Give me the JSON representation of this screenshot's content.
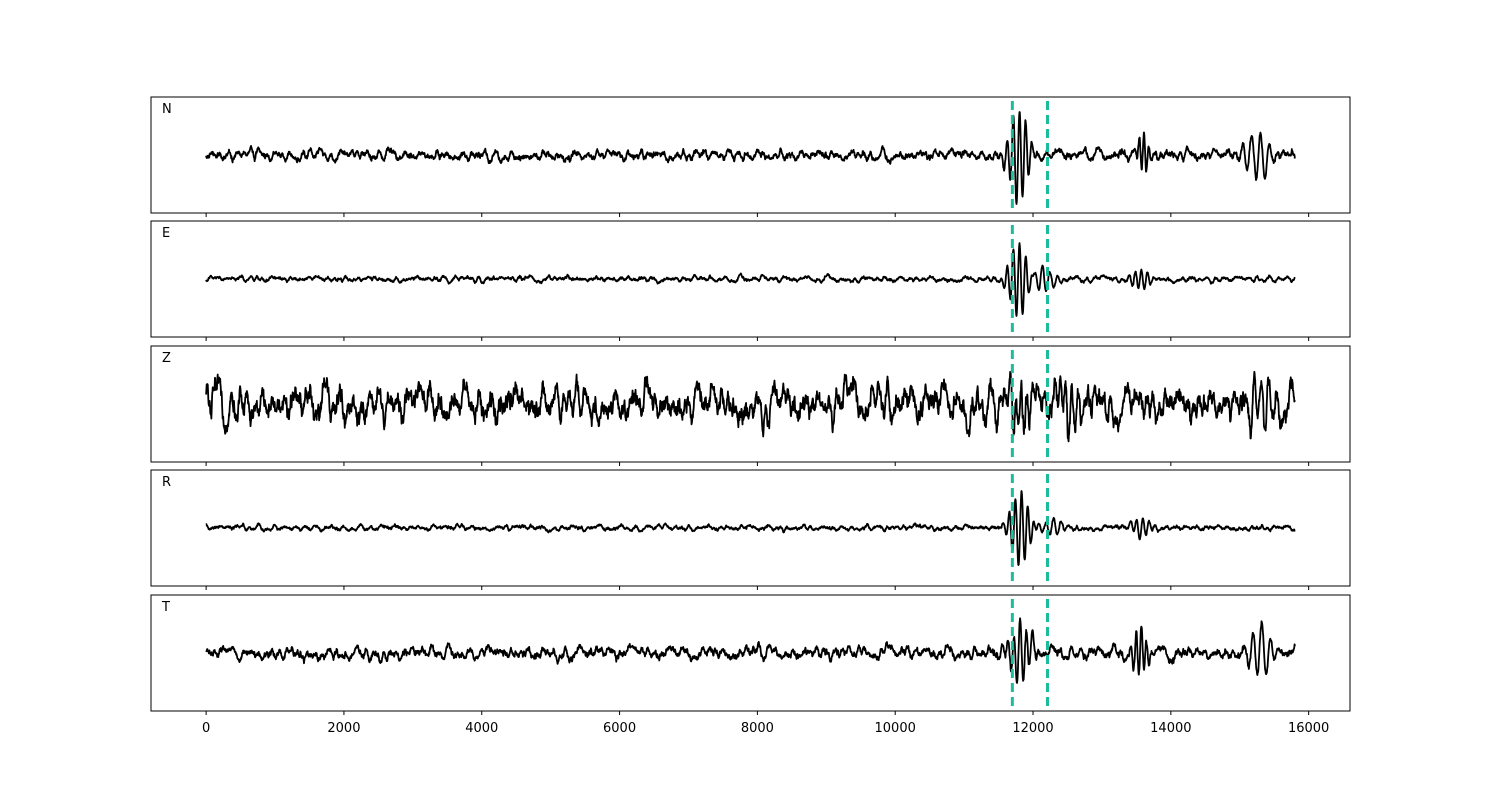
{
  "chart_data": {
    "type": "line",
    "x_ticks": [
      0,
      2000,
      4000,
      6000,
      8000,
      10000,
      12000,
      14000,
      16000
    ],
    "x_tick_labels": [
      "0",
      "2000",
      "4000",
      "6000",
      "8000",
      "10000",
      "12000",
      "14000",
      "16000"
    ],
    "xlim": [
      -800,
      16600
    ],
    "x_range": [
      0,
      15800
    ],
    "xlabel": "",
    "ylabel": "",
    "grid": false,
    "marker_lines": {
      "positions": [
        11700,
        12210
      ],
      "color": "#1abc9c",
      "style": "dashed"
    },
    "trace_color": "#000000",
    "panels": [
      {
        "label": "N",
        "noise_level": 0.12,
        "events": [
          {
            "x": 11790,
            "amp": 0.95,
            "dur": 160,
            "period": 90
          },
          {
            "x": 13600,
            "amp": 0.4,
            "dur": 90,
            "period": 70
          },
          {
            "x": 15280,
            "amp": 0.45,
            "dur": 190,
            "period": 130
          }
        ]
      },
      {
        "label": "E",
        "noise_level": 0.06,
        "events": [
          {
            "x": 11790,
            "amp": 0.75,
            "dur": 160,
            "period": 90
          },
          {
            "x": 12120,
            "amp": 0.25,
            "dur": 200,
            "period": 110
          },
          {
            "x": 13560,
            "amp": 0.2,
            "dur": 150,
            "period": 90
          }
        ]
      },
      {
        "label": "Z",
        "noise_level": 0.4,
        "events": [
          {
            "x": 11820,
            "amp": 0.45,
            "dur": 200,
            "period": 80
          },
          {
            "x": 12550,
            "amp": 0.45,
            "dur": 160,
            "period": 90
          },
          {
            "x": 15300,
            "amp": 0.4,
            "dur": 200,
            "period": 110
          }
        ]
      },
      {
        "label": "R",
        "noise_level": 0.06,
        "events": [
          {
            "x": 11820,
            "amp": 0.75,
            "dur": 160,
            "period": 90
          },
          {
            "x": 12280,
            "amp": 0.15,
            "dur": 220,
            "period": 110
          },
          {
            "x": 13580,
            "amp": 0.2,
            "dur": 150,
            "period": 90
          }
        ]
      },
      {
        "label": "T",
        "noise_level": 0.14,
        "events": [
          {
            "x": 11800,
            "amp": 0.6,
            "dur": 180,
            "period": 90
          },
          {
            "x": 13560,
            "amp": 0.45,
            "dur": 120,
            "period": 75
          },
          {
            "x": 15300,
            "amp": 0.6,
            "dur": 190,
            "period": 130
          }
        ]
      }
    ]
  }
}
